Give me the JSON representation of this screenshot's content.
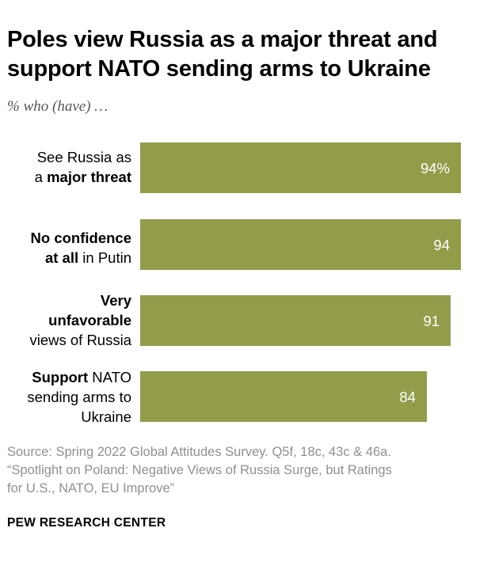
{
  "header": {
    "title_line1": "Poles view Russia as a major threat and",
    "title_line2": "support NATO sending arms to Ukraine",
    "subtitle": "% who (have) …"
  },
  "chart_data": {
    "type": "bar",
    "orientation": "horizontal",
    "title": "Poles view Russia as a major threat and support NATO sending arms to Ukraine",
    "subtitle": "% who (have) …",
    "categories": [
      "See Russia as a major threat",
      "No confidence at all in Putin",
      "Very unfavorable views of Russia",
      "Support NATO sending arms to Ukraine"
    ],
    "values": [
      94,
      94,
      91,
      84
    ],
    "value_labels": [
      "94%",
      "94",
      "91",
      "84"
    ],
    "category_labels": [
      {
        "line1_plain": "See Russia as",
        "line2_plain": "a ",
        "line2_bold": "major threat"
      },
      {
        "line1_bold": "No confidence",
        "line2_bold": "at all",
        "line2_plain": " in Putin"
      },
      {
        "line1_bold": "Very",
        "line2_bold": "unfavorable",
        "line3_plain": "views of Russia"
      },
      {
        "line1_bold": "Support",
        "line1_plain": " NATO",
        "line2_plain": "sending arms to",
        "line3_plain": "Ukraine"
      }
    ],
    "xlim": [
      0,
      100
    ],
    "bar_color": "#939c48",
    "grid": false,
    "legend": "none"
  },
  "footer": {
    "source_line1": "Source: Spring 2022 Global Attitudes Survey. Q5f, 18c, 43c & 46a.",
    "source_line2": "“Spotlight on Poland: Negative Views of Russia Surge, but Ratings",
    "source_line3": "for U.S., NATO, EU Improve”",
    "organization": "PEW RESEARCH CENTER"
  }
}
